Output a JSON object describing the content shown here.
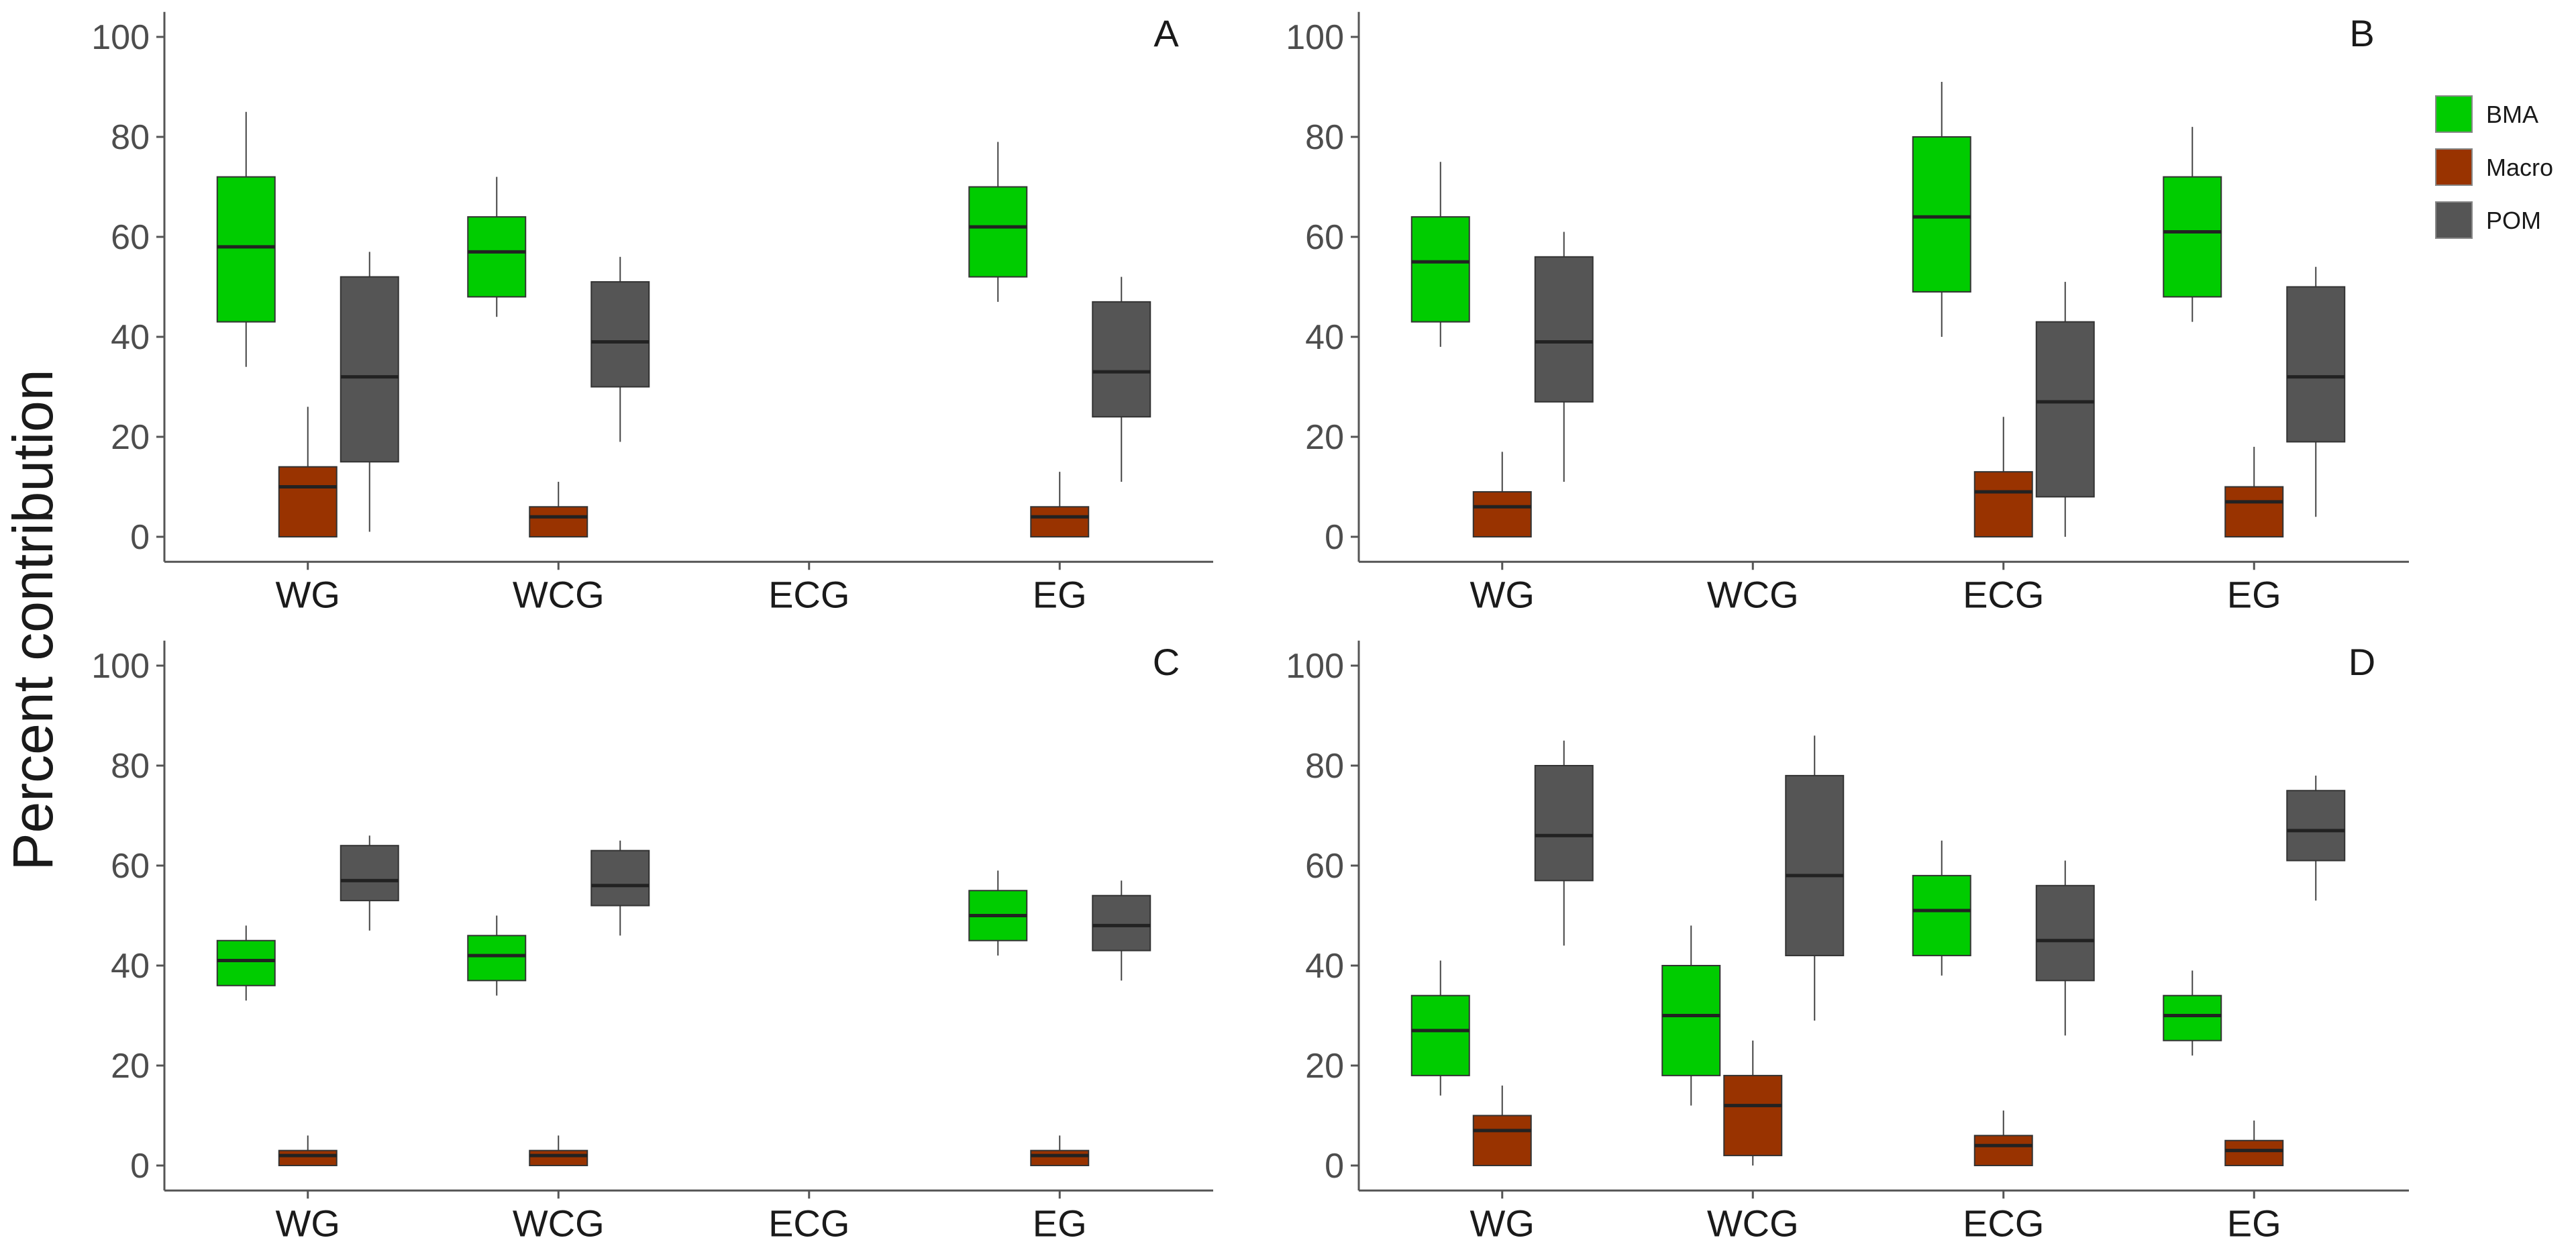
{
  "chart_data": {
    "type": "boxplot",
    "ylabel": "Percent contribution",
    "ylim": [
      -5,
      105
    ],
    "yticks": [
      0,
      20,
      40,
      60,
      80,
      100
    ],
    "categories": [
      "WG",
      "WCG",
      "ECG",
      "EG"
    ],
    "legend": [
      {
        "name": "BMA",
        "color": "#00cc00"
      },
      {
        "name": "Macro",
        "color": "#993300"
      },
      {
        "name": "POM",
        "color": "#555555"
      }
    ],
    "panels": [
      {
        "letter": "A",
        "boxes": [
          {
            "category": "WG",
            "source": "BMA",
            "min": 34,
            "q1": 43,
            "median": 58,
            "q3": 72,
            "max": 85
          },
          {
            "category": "WG",
            "source": "Macro",
            "min": 0,
            "q1": 0,
            "median": 10,
            "q3": 14,
            "max": 26
          },
          {
            "category": "WG",
            "source": "POM",
            "min": 1,
            "q1": 15,
            "median": 32,
            "q3": 52,
            "max": 57
          },
          {
            "category": "WCG",
            "source": "BMA",
            "min": 44,
            "q1": 48,
            "median": 57,
            "q3": 64,
            "max": 72
          },
          {
            "category": "WCG",
            "source": "Macro",
            "min": 0,
            "q1": 0,
            "median": 4,
            "q3": 6,
            "max": 11
          },
          {
            "category": "WCG",
            "source": "POM",
            "min": 19,
            "q1": 30,
            "median": 39,
            "q3": 51,
            "max": 56
          },
          {
            "category": "EG",
            "source": "BMA",
            "min": 47,
            "q1": 52,
            "median": 62,
            "q3": 70,
            "max": 79
          },
          {
            "category": "EG",
            "source": "Macro",
            "min": 0,
            "q1": 0,
            "median": 4,
            "q3": 6,
            "max": 13
          },
          {
            "category": "EG",
            "source": "POM",
            "min": 11,
            "q1": 24,
            "median": 33,
            "q3": 47,
            "max": 52
          }
        ]
      },
      {
        "letter": "B",
        "boxes": [
          {
            "category": "WG",
            "source": "BMA",
            "min": 38,
            "q1": 43,
            "median": 55,
            "q3": 64,
            "max": 75
          },
          {
            "category": "WG",
            "source": "Macro",
            "min": 0,
            "q1": 0,
            "median": 6,
            "q3": 9,
            "max": 17
          },
          {
            "category": "WG",
            "source": "POM",
            "min": 11,
            "q1": 27,
            "median": 39,
            "q3": 56,
            "max": 61
          },
          {
            "category": "ECG",
            "source": "BMA",
            "min": 40,
            "q1": 49,
            "median": 64,
            "q3": 80,
            "max": 91
          },
          {
            "category": "ECG",
            "source": "Macro",
            "min": 0,
            "q1": 0,
            "median": 9,
            "q3": 13,
            "max": 24
          },
          {
            "category": "ECG",
            "source": "POM",
            "min": 0,
            "q1": 8,
            "median": 27,
            "q3": 43,
            "max": 51
          },
          {
            "category": "EG",
            "source": "BMA",
            "min": 43,
            "q1": 48,
            "median": 61,
            "q3": 72,
            "max": 82
          },
          {
            "category": "EG",
            "source": "Macro",
            "min": 0,
            "q1": 0,
            "median": 7,
            "q3": 10,
            "max": 18
          },
          {
            "category": "EG",
            "source": "POM",
            "min": 4,
            "q1": 19,
            "median": 32,
            "q3": 50,
            "max": 54
          }
        ]
      },
      {
        "letter": "C",
        "boxes": [
          {
            "category": "WG",
            "source": "BMA",
            "min": 33,
            "q1": 36,
            "median": 41,
            "q3": 45,
            "max": 48
          },
          {
            "category": "WG",
            "source": "Macro",
            "min": 0,
            "q1": 0,
            "median": 2,
            "q3": 3,
            "max": 6
          },
          {
            "category": "WG",
            "source": "POM",
            "min": 47,
            "q1": 53,
            "median": 57,
            "q3": 64,
            "max": 66
          },
          {
            "category": "WCG",
            "source": "BMA",
            "min": 34,
            "q1": 37,
            "median": 42,
            "q3": 46,
            "max": 50
          },
          {
            "category": "WCG",
            "source": "Macro",
            "min": 0,
            "q1": 0,
            "median": 2,
            "q3": 3,
            "max": 6
          },
          {
            "category": "WCG",
            "source": "POM",
            "min": 46,
            "q1": 52,
            "median": 56,
            "q3": 63,
            "max": 65
          },
          {
            "category": "EG",
            "source": "BMA",
            "min": 42,
            "q1": 45,
            "median": 50,
            "q3": 55,
            "max": 59
          },
          {
            "category": "EG",
            "source": "Macro",
            "min": 0,
            "q1": 0,
            "median": 2,
            "q3": 3,
            "max": 6
          },
          {
            "category": "EG",
            "source": "POM",
            "min": 37,
            "q1": 43,
            "median": 48,
            "q3": 54,
            "max": 57
          }
        ]
      },
      {
        "letter": "D",
        "boxes": [
          {
            "category": "WG",
            "source": "BMA",
            "min": 14,
            "q1": 18,
            "median": 27,
            "q3": 34,
            "max": 41
          },
          {
            "category": "WG",
            "source": "Macro",
            "min": 0,
            "q1": 0,
            "median": 7,
            "q3": 10,
            "max": 16
          },
          {
            "category": "WG",
            "source": "POM",
            "min": 44,
            "q1": 57,
            "median": 66,
            "q3": 80,
            "max": 85
          },
          {
            "category": "WCG",
            "source": "BMA",
            "min": 12,
            "q1": 18,
            "median": 30,
            "q3": 40,
            "max": 48
          },
          {
            "category": "WCG",
            "source": "Macro",
            "min": 0,
            "q1": 2,
            "median": 12,
            "q3": 18,
            "max": 25
          },
          {
            "category": "WCG",
            "source": "POM",
            "min": 29,
            "q1": 42,
            "median": 58,
            "q3": 78,
            "max": 86
          },
          {
            "category": "ECG",
            "source": "BMA",
            "min": 38,
            "q1": 42,
            "median": 51,
            "q3": 58,
            "max": 65
          },
          {
            "category": "ECG",
            "source": "Macro",
            "min": 0,
            "q1": 0,
            "median": 4,
            "q3": 6,
            "max": 11
          },
          {
            "category": "ECG",
            "source": "POM",
            "min": 26,
            "q1": 37,
            "median": 45,
            "q3": 56,
            "max": 61
          },
          {
            "category": "EG",
            "source": "BMA",
            "min": 22,
            "q1": 25,
            "median": 30,
            "q3": 34,
            "max": 39
          },
          {
            "category": "EG",
            "source": "Macro",
            "min": 0,
            "q1": 0,
            "median": 3,
            "q3": 5,
            "max": 9
          },
          {
            "category": "EG",
            "source": "POM",
            "min": 53,
            "q1": 61,
            "median": 67,
            "q3": 75,
            "max": 78
          }
        ]
      }
    ]
  }
}
